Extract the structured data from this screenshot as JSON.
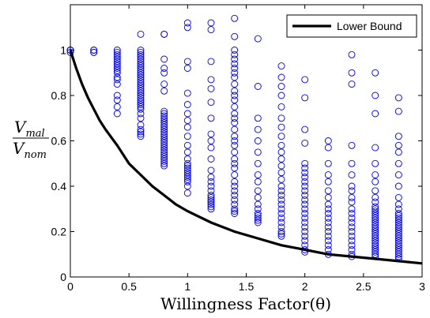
{
  "chart_data": {
    "type": "scatter",
    "title": "",
    "xlabel": "Willingness Factor(θ)",
    "ylabel": {
      "numerator_main": "V",
      "numerator_sub": "mal",
      "denominator_main": "V",
      "denominator_sub": "nom"
    },
    "xlim": [
      0,
      3
    ],
    "ylim": [
      0,
      1.2
    ],
    "xticks": [
      0,
      0.5,
      1,
      1.5,
      2,
      2.5,
      3
    ],
    "yticks": [
      0,
      0.2,
      0.4,
      0.6,
      0.8,
      1
    ],
    "xtick_labels": [
      "0",
      "0.5",
      "1",
      "1.5",
      "2",
      "2.5",
      "3"
    ],
    "ytick_labels": [
      "0",
      "0.2",
      "0.4",
      "0.6",
      "0.8",
      "1"
    ],
    "grid": false,
    "legend": {
      "position": "top-right",
      "entries": [
        {
          "label": "Lower Bound",
          "color": "#000000",
          "style": "line"
        }
      ]
    },
    "marker_color": "#0000ff",
    "line_color": "#000000",
    "series": [
      {
        "type": "scatter",
        "columns": [
          {
            "x": 0.0,
            "y": [
              1.0,
              1.0,
              1.0,
              0.99
            ]
          },
          {
            "x": 0.2,
            "y": [
              1.0,
              1.0,
              0.99,
              0.99
            ]
          },
          {
            "x": 0.4,
            "y": [
              1.0,
              0.99,
              0.98,
              0.97,
              0.96,
              0.95,
              0.94,
              0.93,
              0.92,
              0.91,
              0.9,
              0.88,
              0.87,
              0.85,
              0.8,
              0.78,
              0.75,
              0.72
            ]
          },
          {
            "x": 0.6,
            "y": [
              1.07,
              1.0,
              0.99,
              0.98,
              0.97,
              0.96,
              0.95,
              0.94,
              0.93,
              0.92,
              0.91,
              0.9,
              0.89,
              0.88,
              0.87,
              0.86,
              0.85,
              0.84,
              0.83,
              0.82,
              0.81,
              0.8,
              0.79,
              0.78,
              0.77,
              0.76,
              0.75,
              0.74,
              0.72,
              0.7,
              0.67,
              0.65,
              0.64,
              0.63,
              0.62
            ]
          },
          {
            "x": 0.8,
            "y": [
              1.07,
              1.07,
              0.96,
              0.92,
              0.9,
              0.85,
              0.82,
              0.73,
              0.72,
              0.71,
              0.7,
              0.69,
              0.68,
              0.67,
              0.66,
              0.65,
              0.64,
              0.63,
              0.62,
              0.61,
              0.6,
              0.59,
              0.58,
              0.57,
              0.56,
              0.55,
              0.54,
              0.53,
              0.52,
              0.51,
              0.5,
              0.49
            ]
          },
          {
            "x": 1.0,
            "y": [
              1.12,
              1.1,
              0.95,
              0.92,
              0.81,
              0.76,
              0.72,
              0.69,
              0.66,
              0.62,
              0.58,
              0.55,
              0.52,
              0.5,
              0.49,
              0.48,
              0.47,
              0.46,
              0.45,
              0.44,
              0.43,
              0.42,
              0.4,
              0.37
            ]
          },
          {
            "x": 1.2,
            "y": [
              1.12,
              1.09,
              0.95,
              0.87,
              0.83,
              0.77,
              0.7,
              0.63,
              0.6,
              0.57,
              0.52,
              0.47,
              0.44,
              0.42,
              0.4,
              0.38,
              0.36,
              0.35,
              0.34,
              0.33,
              0.32,
              0.31,
              0.3
            ]
          },
          {
            "x": 1.4,
            "y": [
              1.14,
              1.06,
              1.0,
              0.98,
              0.96,
              0.94,
              0.92,
              0.9,
              0.88,
              0.85,
              0.82,
              0.8,
              0.78,
              0.75,
              0.72,
              0.7,
              0.68,
              0.65,
              0.62,
              0.6,
              0.58,
              0.55,
              0.52,
              0.5,
              0.48,
              0.45,
              0.42,
              0.4,
              0.38,
              0.36,
              0.34,
              0.32,
              0.3,
              0.29,
              0.28
            ]
          },
          {
            "x": 1.6,
            "y": [
              1.05,
              0.84,
              0.7,
              0.65,
              0.6,
              0.55,
              0.5,
              0.45,
              0.42,
              0.38,
              0.35,
              0.32,
              0.3,
              0.28,
              0.27,
              0.26,
              0.25,
              0.24
            ]
          },
          {
            "x": 1.8,
            "y": [
              0.93,
              0.88,
              0.84,
              0.8,
              0.75,
              0.7,
              0.66,
              0.62,
              0.58,
              0.55,
              0.52,
              0.49,
              0.46,
              0.43,
              0.4,
              0.38,
              0.36,
              0.34,
              0.32,
              0.3,
              0.28,
              0.26,
              0.24,
              0.22,
              0.2,
              0.19,
              0.18
            ]
          },
          {
            "x": 2.0,
            "y": [
              0.87,
              0.79,
              0.65,
              0.59,
              0.5,
              0.48,
              0.46,
              0.44,
              0.42,
              0.4,
              0.38,
              0.36,
              0.34,
              0.32,
              0.3,
              0.28,
              0.26,
              0.24,
              0.22,
              0.2,
              0.18,
              0.16,
              0.14,
              0.12,
              0.11
            ]
          },
          {
            "x": 2.2,
            "y": [
              0.6,
              0.57,
              0.5,
              0.45,
              0.42,
              0.38,
              0.35,
              0.32,
              0.3,
              0.28,
              0.26,
              0.24,
              0.22,
              0.2,
              0.18,
              0.16,
              0.14,
              0.12,
              0.1
            ]
          },
          {
            "x": 2.4,
            "y": [
              0.98,
              0.9,
              0.85,
              0.58,
              0.5,
              0.45,
              0.4,
              0.38,
              0.35,
              0.33,
              0.3,
              0.28,
              0.26,
              0.24,
              0.22,
              0.2,
              0.18,
              0.16,
              0.14,
              0.12,
              0.1,
              0.09
            ]
          },
          {
            "x": 2.6,
            "y": [
              0.9,
              0.8,
              0.72,
              0.57,
              0.5,
              0.45,
              0.42,
              0.38,
              0.35,
              0.33,
              0.31,
              0.3,
              0.29,
              0.28,
              0.27,
              0.26,
              0.25,
              0.24,
              0.23,
              0.22,
              0.21,
              0.2,
              0.19,
              0.18,
              0.17,
              0.16,
              0.15,
              0.14,
              0.13,
              0.12,
              0.11,
              0.1,
              0.09
            ]
          },
          {
            "x": 2.8,
            "y": [
              0.79,
              0.73,
              0.62,
              0.58,
              0.55,
              0.5,
              0.45,
              0.4,
              0.35,
              0.32,
              0.3,
              0.28,
              0.27,
              0.26,
              0.25,
              0.24,
              0.23,
              0.22,
              0.21,
              0.2,
              0.19,
              0.18,
              0.17,
              0.16,
              0.15,
              0.14,
              0.13,
              0.12,
              0.11,
              0.1,
              0.09,
              0.08
            ]
          }
        ]
      },
      {
        "type": "line",
        "name": "Lower Bound",
        "x": [
          0,
          0.05,
          0.1,
          0.15,
          0.2,
          0.25,
          0.3,
          0.4,
          0.5,
          0.6,
          0.7,
          0.8,
          0.9,
          1.0,
          1.2,
          1.4,
          1.6,
          1.8,
          2.0,
          2.2,
          2.4,
          2.6,
          2.8,
          3.0
        ],
        "y": [
          1.0,
          0.92,
          0.85,
          0.79,
          0.74,
          0.69,
          0.65,
          0.58,
          0.5,
          0.45,
          0.4,
          0.36,
          0.32,
          0.29,
          0.24,
          0.2,
          0.17,
          0.14,
          0.12,
          0.1,
          0.09,
          0.08,
          0.07,
          0.06
        ]
      }
    ]
  }
}
